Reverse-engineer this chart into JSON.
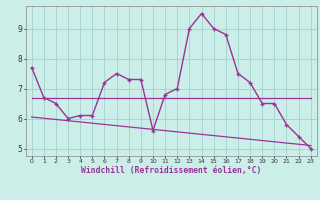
{
  "x": [
    0,
    1,
    2,
    3,
    4,
    5,
    6,
    7,
    8,
    9,
    10,
    11,
    12,
    13,
    14,
    15,
    16,
    17,
    18,
    19,
    20,
    21,
    22,
    23
  ],
  "y_main": [
    7.7,
    6.7,
    6.5,
    6.0,
    6.1,
    6.1,
    7.2,
    7.5,
    7.3,
    7.3,
    5.6,
    6.8,
    7.0,
    9.0,
    9.5,
    9.0,
    8.8,
    7.5,
    7.2,
    6.5,
    6.5,
    5.8,
    5.4,
    5.0
  ],
  "y_trend1_start": 6.7,
  "y_trend1_end": 6.7,
  "y_trend2_start": 6.05,
  "y_trend2_end": 5.1,
  "line_color": "#993399",
  "bg_color": "#cceee8",
  "grid_color": "#99cccc",
  "xlabel": "Windchill (Refroidissement éolien,°C)",
  "xlim": [
    -0.5,
    23.5
  ],
  "ylim": [
    4.75,
    9.75
  ],
  "yticks": [
    5,
    6,
    7,
    8,
    9
  ],
  "xticks": [
    0,
    1,
    2,
    3,
    4,
    5,
    6,
    7,
    8,
    9,
    10,
    11,
    12,
    13,
    14,
    15,
    16,
    17,
    18,
    19,
    20,
    21,
    22,
    23
  ]
}
